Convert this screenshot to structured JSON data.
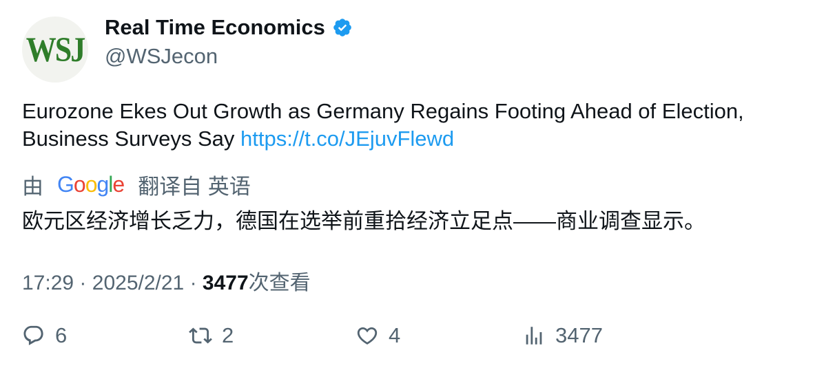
{
  "author": {
    "avatar_text": "WSJ",
    "name": "Real Time Economics",
    "handle": "@WSJecon"
  },
  "tweet": {
    "text": "Eurozone Ekes Out Growth as Germany Regains Footing Ahead of Election, Business Surveys Say ",
    "link": "https://t.co/JEjuvFlewd"
  },
  "translation": {
    "prefix": "由",
    "provider_letters": [
      "G",
      "o",
      "o",
      "g",
      "l",
      "e"
    ],
    "suffix": "翻译自 英语",
    "text": "欧元区经济增长乏力，德国在选举前重拾经济立足点——商业调查显示。"
  },
  "meta": {
    "time": "17:29",
    "separator": "·",
    "date": "2025/2/21",
    "views_count": "3477",
    "views_label": "次查看"
  },
  "actions": {
    "replies": "6",
    "reposts": "2",
    "likes": "4",
    "views": "3477"
  },
  "colors": {
    "accent": "#1d9bf0",
    "muted": "#536471",
    "text": "#0f1419",
    "wsj_green": "#2f7d2a"
  },
  "icons": [
    "verified-badge-icon",
    "reply-icon",
    "repost-icon",
    "like-icon",
    "views-icon"
  ]
}
